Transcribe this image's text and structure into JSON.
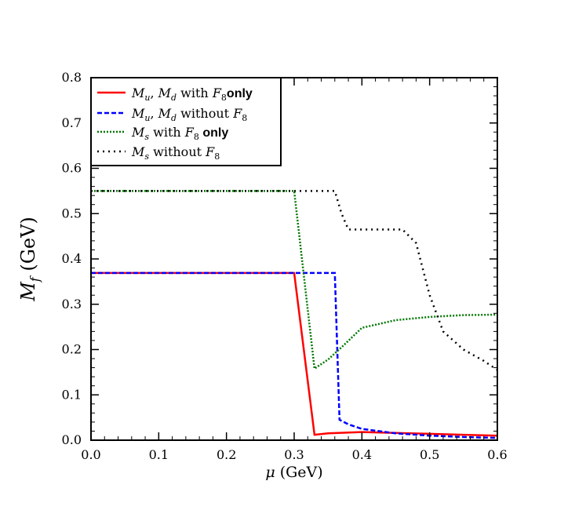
{
  "chart_data": {
    "type": "line",
    "xlabel": "μ (GeV)",
    "ylabel": "M_f (GeV)",
    "xlim": [
      0.0,
      0.6
    ],
    "ylim": [
      0.0,
      0.8
    ],
    "xticks": [
      "0.0",
      "0.1",
      "0.2",
      "0.3",
      "0.4",
      "0.5",
      "0.6"
    ],
    "yticks": [
      "0.0",
      "0.1",
      "0.2",
      "0.3",
      "0.4",
      "0.5",
      "0.6",
      "0.7",
      "0.8"
    ],
    "grid": false,
    "legend_position": "top-left",
    "series": [
      {
        "name": "M_u, M_d with F_8only",
        "color": "#ff0000",
        "style": "solid",
        "x": [
          0.0,
          0.3,
          0.33,
          0.35,
          0.4,
          0.45,
          0.5,
          0.55,
          0.6
        ],
        "y": [
          0.369,
          0.369,
          0.012,
          0.015,
          0.018,
          0.016,
          0.014,
          0.012,
          0.01
        ]
      },
      {
        "name": "M_u, M_d without F_8",
        "color": "#0000ff",
        "style": "dashed",
        "x": [
          0.0,
          0.36,
          0.367,
          0.38,
          0.4,
          0.45,
          0.5,
          0.55,
          0.6
        ],
        "y": [
          0.369,
          0.369,
          0.045,
          0.035,
          0.025,
          0.015,
          0.01,
          0.007,
          0.005
        ]
      },
      {
        "name": "M_s with F_8 only",
        "color": "#007700",
        "style": "dotted",
        "x": [
          0.0,
          0.3,
          0.33,
          0.35,
          0.37,
          0.4,
          0.45,
          0.5,
          0.55,
          0.6
        ],
        "y": [
          0.55,
          0.55,
          0.158,
          0.178,
          0.205,
          0.248,
          0.265,
          0.272,
          0.276,
          0.277
        ]
      },
      {
        "name": "M_s without F_8",
        "color": "#000000",
        "style": "dotted",
        "x": [
          0.0,
          0.36,
          0.37,
          0.38,
          0.46,
          0.48,
          0.5,
          0.52,
          0.55,
          0.58,
          0.6
        ],
        "y": [
          0.55,
          0.55,
          0.5,
          0.465,
          0.465,
          0.435,
          0.32,
          0.24,
          0.2,
          0.175,
          0.155
        ]
      }
    ]
  }
}
